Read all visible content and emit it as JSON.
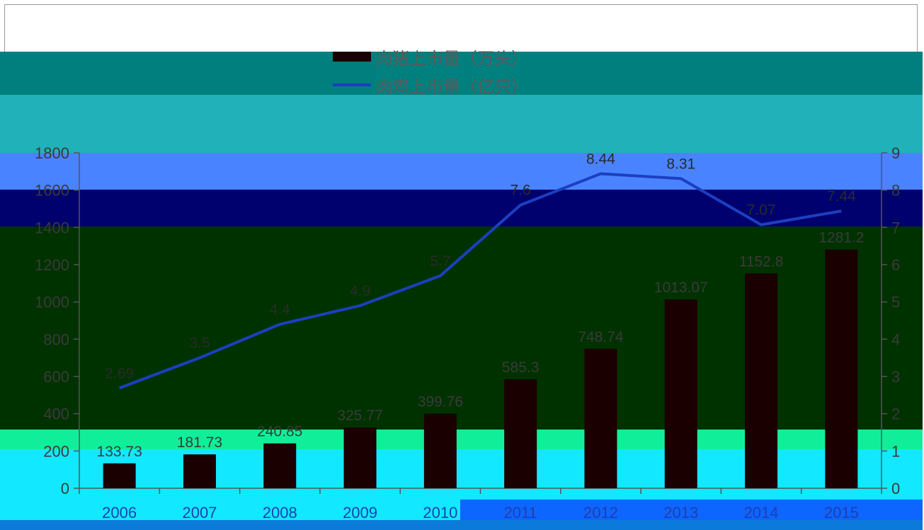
{
  "chart_data": {
    "type": "bar-line-combo",
    "categories": [
      "2006",
      "2007",
      "2008",
      "2009",
      "2010",
      "2011",
      "2012",
      "2013",
      "2014",
      "2015"
    ],
    "series": [
      {
        "name": "肉猪上市量（万头）",
        "type": "bar",
        "axis": "left",
        "values": [
          133.73,
          181.73,
          240.85,
          325.77,
          399.76,
          585.3,
          748.74,
          1013.07,
          1152.8,
          1281.2
        ],
        "labels": [
          "133.73",
          "181.73",
          "240.85",
          "325.77",
          "399.76",
          "585.3",
          "748.74",
          "1013.07",
          "1152.8",
          "1281.2"
        ],
        "color": "#1a0000"
      },
      {
        "name": "肉鸡上市量（亿只）",
        "type": "line",
        "axis": "right",
        "values": [
          2.69,
          3.5,
          4.4,
          4.9,
          5.7,
          7.6,
          8.44,
          8.31,
          7.07,
          7.44
        ],
        "labels": [
          "2.69",
          "3.5",
          "4.4",
          "4.9",
          "5.7",
          "7.6",
          "8.44",
          "8.31",
          "7.07",
          "7.44"
        ],
        "color": "#1c3fc0"
      }
    ],
    "y_left": {
      "min": 0,
      "max": 1800,
      "ticks": [
        "0",
        "200",
        "400",
        "600",
        "800",
        "1000",
        "1200",
        "1400",
        "1600",
        "1800"
      ]
    },
    "y_right": {
      "min": 0,
      "max": 9,
      "ticks": [
        "0",
        "1",
        "2",
        "3",
        "4",
        "5",
        "6",
        "7",
        "8",
        "9"
      ]
    },
    "legend_position": "top-center",
    "grid": false
  }
}
